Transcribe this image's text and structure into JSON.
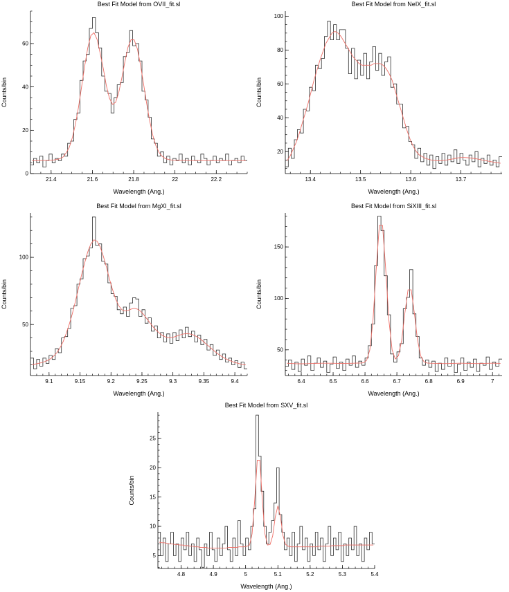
{
  "page": {
    "background": "#ffffff"
  },
  "colors": {
    "data_line": "#2b2b2b",
    "model_line": "#ee6e66",
    "axis": "#000000"
  },
  "chart_data": [
    {
      "type": "line",
      "subtype": "histogram-with-model",
      "title": "Best Fit Model from OVII_fit.sl",
      "xlabel": "Wavelength (Ang.)",
      "ylabel": "Counts/bin",
      "xlim": [
        21.3,
        22.35
      ],
      "ylim": [
        0,
        75
      ],
      "grid": false,
      "legend": false,
      "xticks": [
        21.4,
        21.6,
        21.8,
        22,
        22.2
      ],
      "xtick_labels": [
        "21.4",
        "21.6",
        "21.8",
        "22",
        "22.2"
      ],
      "yticks": [
        0,
        20,
        40,
        60
      ],
      "ytick_labels": [
        "0",
        "20",
        "40",
        "60"
      ],
      "x_minor": 0.05,
      "y_minor": 5,
      "x_start": 21.3,
      "bin_width": 0.015,
      "series_names": [
        "data",
        "model"
      ],
      "counts": [
        4,
        7,
        5,
        8,
        3,
        6,
        9,
        5,
        7,
        6,
        9,
        8,
        14,
        15,
        25,
        28,
        43,
        52,
        55,
        67,
        72,
        65,
        58,
        45,
        38,
        37,
        28,
        35,
        41,
        42,
        54,
        56,
        66,
        59,
        60,
        52,
        38,
        34,
        26,
        16,
        14,
        8,
        10,
        5,
        8,
        4,
        7,
        6,
        9,
        5,
        7,
        4,
        8,
        6,
        5,
        9,
        7,
        4,
        6,
        8,
        5,
        7,
        6,
        9,
        4,
        6,
        7,
        5,
        8,
        6
      ],
      "model": [
        6,
        6,
        6,
        6,
        6.1,
        6.1,
        6.2,
        6.3,
        6.5,
        6.9,
        7.6,
        9.5,
        12,
        16.5,
        22.6,
        30.5,
        40,
        49.5,
        58,
        63.7,
        65,
        62,
        55.6,
        48.6,
        40.7,
        34.8,
        31.9,
        32.9,
        37.3,
        44.1,
        51.7,
        58.3,
        61.8,
        61.7,
        57.6,
        50.5,
        41.6,
        32.5,
        24.3,
        17.7,
        12.9,
        9.8,
        8,
        7,
        6.5,
        6.3,
        6.2,
        6.2,
        6.1,
        6.1,
        6.1,
        6,
        6,
        6,
        6,
        6,
        6,
        6,
        6,
        6,
        6,
        6,
        6,
        6,
        6,
        6,
        6,
        6,
        6,
        6
      ]
    },
    {
      "type": "line",
      "subtype": "histogram-with-model",
      "title": "Best Fit Model from NeIX_fit.sl",
      "xlabel": "Wavelength (Ang.)",
      "ylabel": "Counts/bin",
      "xlim": [
        13.35,
        13.782
      ],
      "ylim": [
        7,
        103
      ],
      "grid": false,
      "legend": false,
      "xticks": [
        13.4,
        13.5,
        13.6,
        13.7
      ],
      "xtick_labels": [
        "13.4",
        "13.5",
        "13.6",
        "13.7"
      ],
      "yticks": [
        20,
        40,
        60,
        80,
        100
      ],
      "ytick_labels": [
        "20",
        "40",
        "60",
        "80",
        "100"
      ],
      "x_minor": 0.02,
      "y_minor": 5,
      "x_start": 13.35,
      "bin_width": 0.006,
      "series_names": [
        "data",
        "model"
      ],
      "counts": [
        11,
        22,
        16,
        27,
        33,
        31,
        45,
        44,
        58,
        56,
        71,
        69,
        75,
        88,
        97,
        86,
        95,
        86,
        92,
        92,
        81,
        66,
        81,
        63,
        74,
        65,
        78,
        63,
        73,
        82,
        68,
        78,
        65,
        73,
        76,
        58,
        60,
        48,
        48,
        34,
        35,
        26,
        24,
        16,
        22,
        14,
        19,
        12,
        18,
        10,
        17,
        13,
        19,
        12,
        18,
        14,
        21,
        13,
        19,
        15,
        12,
        18,
        14,
        20,
        11,
        16,
        13,
        18,
        12,
        15,
        11,
        17
      ],
      "model": [
        14.5,
        17,
        21,
        25,
        30,
        36,
        42,
        48,
        55,
        62,
        68,
        74,
        79,
        84,
        87,
        90,
        91,
        90,
        88,
        85,
        82,
        79,
        76,
        74,
        72,
        71,
        71,
        71,
        71,
        72,
        72,
        72,
        71,
        69,
        66,
        62,
        56,
        50,
        44,
        38,
        32,
        27,
        23,
        20,
        18,
        17,
        16,
        15.5,
        15,
        14.8,
        14.6,
        14.6,
        14.8,
        15,
        15.3,
        15.6,
        16,
        16.3,
        16.5,
        16.5,
        16.4,
        16.2,
        16,
        15.7,
        15.4,
        15,
        14.7,
        14.3,
        14,
        13.7,
        13.4,
        13.1
      ]
    },
    {
      "type": "line",
      "subtype": "histogram-with-model",
      "title": "Best Fit Model from MgXI_fit.sl",
      "xlabel": "Wavelength (Ang.)",
      "ylabel": "Counts/bin",
      "xlim": [
        9.07,
        9.42
      ],
      "ylim": [
        12,
        133
      ],
      "grid": false,
      "legend": false,
      "xticks": [
        9.1,
        9.15,
        9.2,
        9.25,
        9.3,
        9.35,
        9.4
      ],
      "xtick_labels": [
        "9.1",
        "9.15",
        "9.2",
        "9.25",
        "9.3",
        "9.35",
        "9.4"
      ],
      "yticks": [
        50,
        100
      ],
      "ytick_labels": [
        "50",
        "100"
      ],
      "x_minor": 0.01,
      "y_minor": 10,
      "x_start": 9.07,
      "bin_width": 0.005,
      "series_names": [
        "data",
        "model"
      ],
      "counts": [
        25,
        17,
        24,
        19,
        25,
        21,
        27,
        24,
        32,
        29,
        40,
        41,
        47,
        62,
        64,
        80,
        84,
        99,
        101,
        107,
        130,
        109,
        110,
        97,
        95,
        81,
        73,
        71,
        61,
        58,
        63,
        56,
        66,
        70,
        69,
        56,
        61,
        51,
        55,
        45,
        49,
        40,
        44,
        37,
        43,
        36,
        44,
        38,
        46,
        40,
        48,
        41,
        45,
        37,
        42,
        35,
        39,
        31,
        35,
        27,
        31,
        24,
        28,
        22,
        25,
        20,
        23,
        18,
        22,
        17
      ],
      "model": [
        20,
        20.5,
        21,
        21.5,
        22.3,
        23.2,
        24.5,
        26.5,
        29,
        32.5,
        37,
        43,
        50,
        58,
        67,
        77,
        87,
        96,
        104,
        110,
        113,
        112,
        108,
        101,
        93,
        84,
        76,
        69,
        64,
        61,
        60,
        60.5,
        61.5,
        62,
        61.5,
        60,
        57.5,
        54.5,
        51.5,
        48.5,
        46,
        43.8,
        42,
        40.8,
        40.2,
        40.2,
        40.8,
        41.6,
        42.4,
        43,
        43.2,
        43,
        42.3,
        41.2,
        39.8,
        38,
        36,
        34,
        32,
        30,
        28.2,
        26.6,
        25.2,
        24,
        23,
        22.1,
        21.4,
        20.8,
        20.3,
        19.9
      ]
    },
    {
      "type": "line",
      "subtype": "histogram-with-model",
      "title": "Best Fit Model from SiXIII_fit.sl",
      "xlabel": "Wavelength (Ang.)",
      "ylabel": "Counts/bin",
      "xlim": [
        6.35,
        7.03
      ],
      "ylim": [
        25,
        183
      ],
      "grid": false,
      "legend": false,
      "xticks": [
        6.4,
        6.5,
        6.6,
        6.7,
        6.8,
        6.9,
        7
      ],
      "xtick_labels": [
        "6.4",
        "6.5",
        "6.6",
        "6.7",
        "6.8",
        "6.9",
        "7"
      ],
      "yticks": [
        50,
        100,
        150
      ],
      "ytick_labels": [
        "50",
        "100",
        "150"
      ],
      "x_minor": 0.02,
      "y_minor": 10,
      "x_start": 6.35,
      "bin_width": 0.01,
      "series_names": [
        "data",
        "model"
      ],
      "counts": [
        34,
        40,
        31,
        38,
        29,
        41,
        35,
        44,
        30,
        37,
        42,
        33,
        39,
        28,
        36,
        43,
        32,
        38,
        30,
        41,
        35,
        44,
        33,
        39,
        35,
        42,
        54,
        75,
        132,
        180,
        166,
        122,
        84,
        46,
        38,
        48,
        56,
        90,
        101,
        128,
        85,
        63,
        42,
        35,
        40,
        33,
        39,
        29,
        37,
        31,
        42,
        34,
        40,
        28,
        36,
        42,
        30,
        38,
        33,
        41,
        29,
        37,
        35,
        43,
        31,
        38,
        34,
        41
      ],
      "model": [
        37,
        36.8,
        36.6,
        36.5,
        36.4,
        36.4,
        36.5,
        36.6,
        36.7,
        36.8,
        36.9,
        37,
        37,
        37,
        37,
        36.9,
        36.8,
        36.7,
        36.7,
        36.8,
        36.9,
        37,
        37.1,
        37.2,
        37.4,
        39.7,
        49.9,
        78.6,
        128,
        171,
        171,
        128,
        78.6,
        50,
        41.1,
        44.3,
        59.2,
        85.5,
        108.3,
        108.3,
        85.4,
        59.1,
        43.9,
        38.4,
        37.2,
        37,
        36.9,
        36.8,
        36.7,
        36.6,
        36.6,
        36.7,
        36.8,
        36.9,
        37,
        37,
        36.9,
        36.8,
        36.7,
        36.6,
        36.6,
        36.7,
        36.8,
        36.9,
        37,
        37,
        36.9,
        36.8
      ]
    },
    {
      "type": "line",
      "subtype": "histogram-with-model",
      "title": "Best Fit Model from SXV_fit.sl",
      "xlabel": "Wavelength (Ang.)",
      "ylabel": "Counts/bin",
      "xlim": [
        4.728,
        5.4
      ],
      "ylim": [
        2.8,
        29.5
      ],
      "grid": false,
      "legend": false,
      "xticks": [
        4.8,
        4.9,
        5,
        5.1,
        5.2,
        5.3,
        5.4
      ],
      "xtick_labels": [
        "4.8",
        "4.9",
        "5",
        "5.1",
        "5.2",
        "5.3",
        "5.4"
      ],
      "yticks": [
        5,
        10,
        15,
        20,
        25
      ],
      "ytick_labels": [
        "5",
        "10",
        "15",
        "20",
        "25"
      ],
      "x_minor": 0.02,
      "y_minor": 1,
      "x_start": 4.728,
      "bin_width": 0.008,
      "series_names": [
        "data",
        "model"
      ],
      "counts": [
        9,
        5,
        8,
        4,
        7,
        9,
        5,
        7,
        4,
        8,
        6,
        9,
        5,
        7,
        4,
        8,
        6,
        3,
        7,
        5,
        9,
        6,
        4,
        8,
        5,
        7,
        10,
        6,
        4,
        8,
        5,
        11,
        7,
        5,
        8,
        6,
        10,
        13,
        29,
        22,
        16,
        10,
        7,
        9,
        11,
        14,
        20,
        12,
        9,
        6,
        8,
        5,
        9,
        4,
        7,
        10,
        6,
        8,
        4,
        7,
        5,
        9,
        6,
        8,
        4,
        7,
        10,
        5,
        8,
        6,
        9,
        4,
        7,
        5,
        8,
        6,
        10,
        5,
        7,
        4,
        8,
        6,
        9,
        7
      ],
      "model": [
        7.3,
        7.2,
        7.2,
        7.1,
        7,
        7,
        6.9,
        6.9,
        6.8,
        6.8,
        6.7,
        6.7,
        6.6,
        6.6,
        6.5,
        6.5,
        6.4,
        6.4,
        6.4,
        6.3,
        6.3,
        6.3,
        6.3,
        6.3,
        6.3,
        6.3,
        6.3,
        6.4,
        6.4,
        6.4,
        6.4,
        6.5,
        6.5,
        6.5,
        6.6,
        6.8,
        8.7,
        14.3,
        21.3,
        21.3,
        14.3,
        8.7,
        6.8,
        6.9,
        8.4,
        11.6,
        13.5,
        11.6,
        8.4,
        6.9,
        6.6,
        6.5,
        6.5,
        6.5,
        6.5,
        6.5,
        6.5,
        6.5,
        6.5,
        6.5,
        6.5,
        6.5,
        6.6,
        6.6,
        6.6,
        6.6,
        6.6,
        6.7,
        6.7,
        6.7,
        6.7,
        6.7,
        6.8,
        6.8,
        6.8,
        6.8,
        6.8,
        6.8,
        6.8,
        6.8,
        6.8,
        6.8,
        6.8,
        6.8
      ]
    }
  ]
}
